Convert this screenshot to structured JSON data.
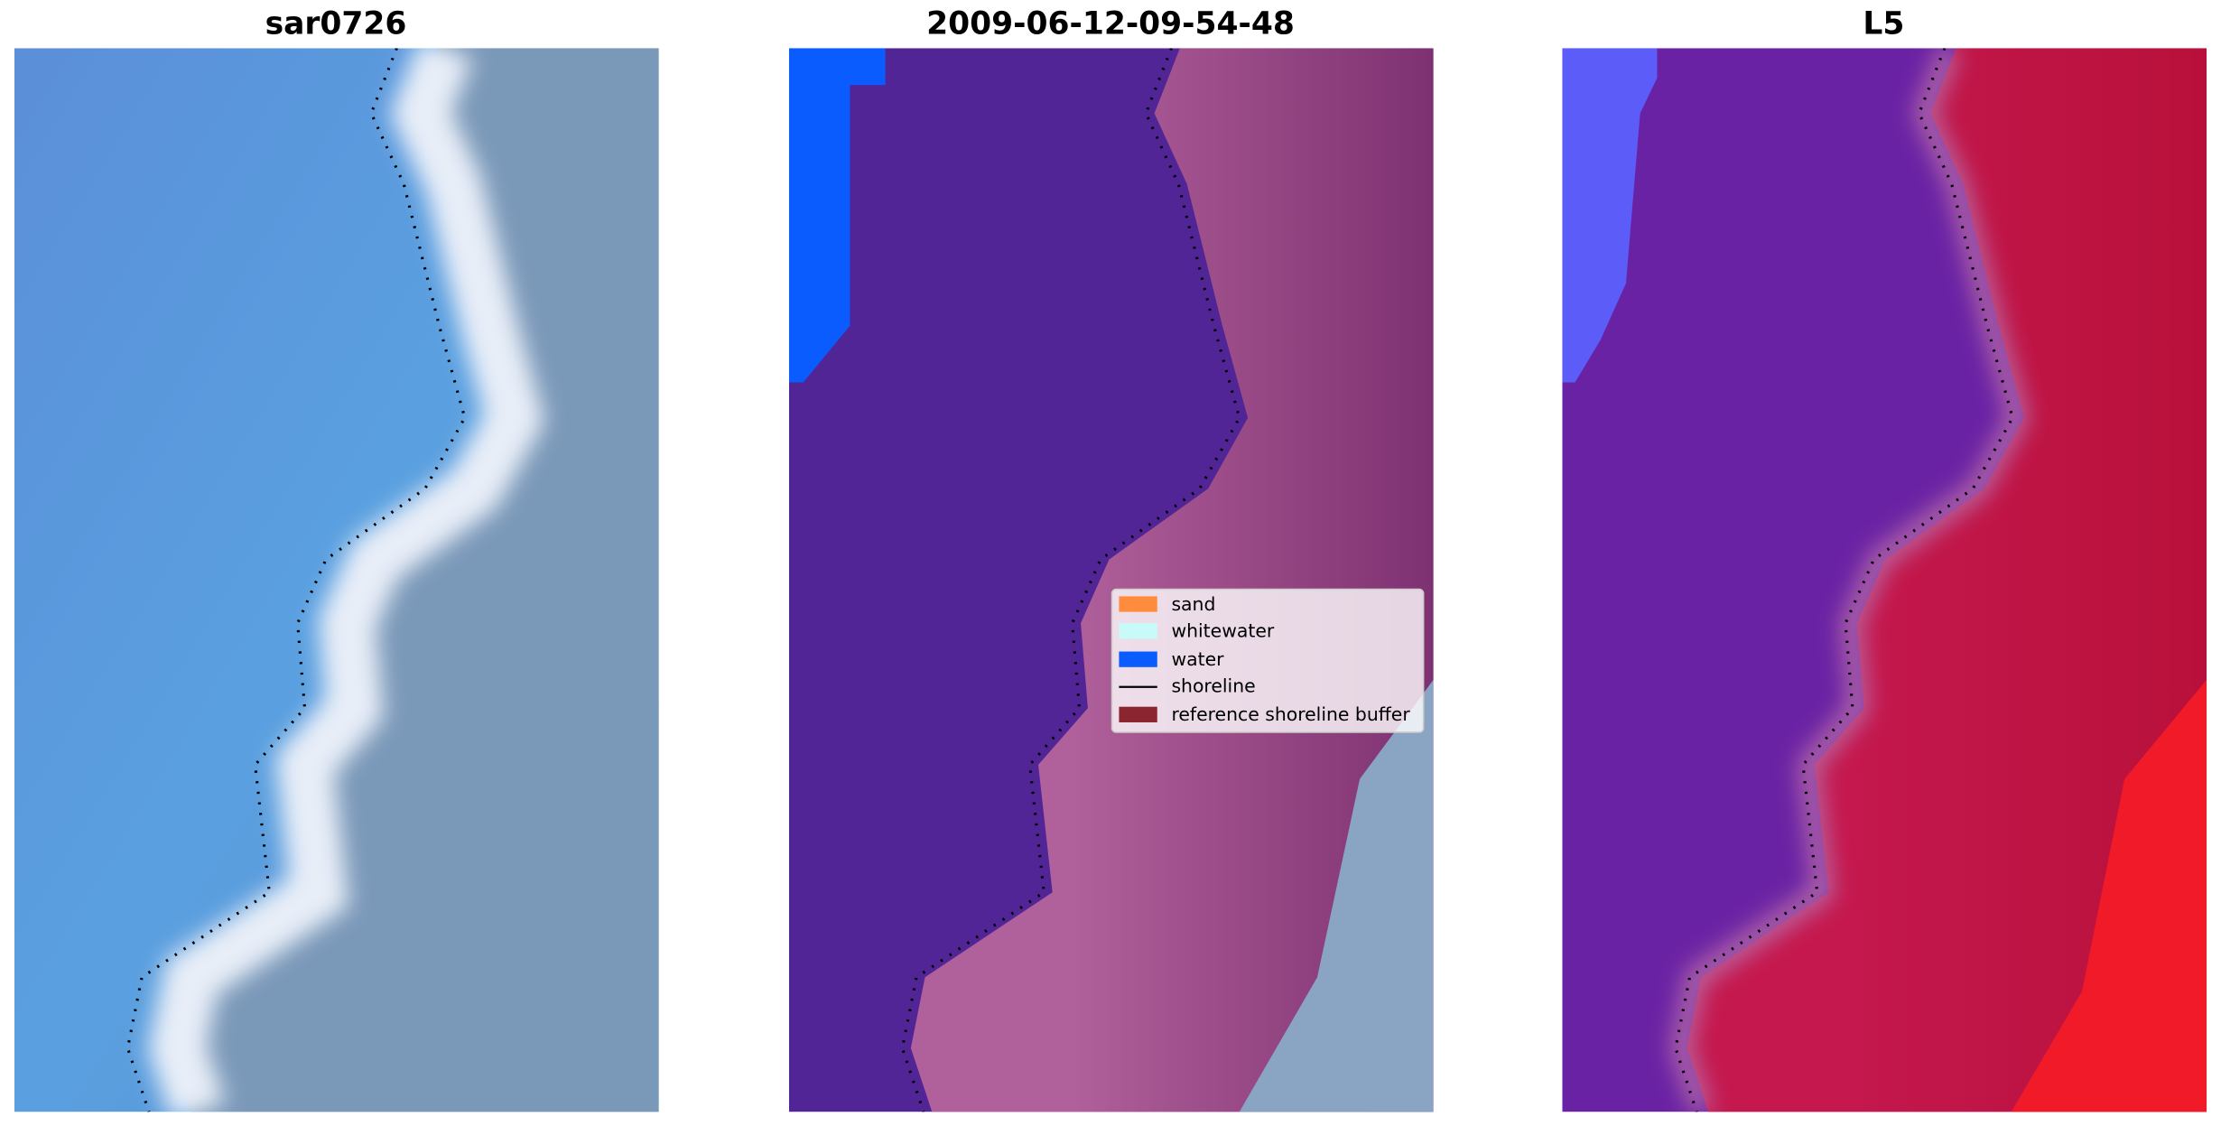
{
  "panels": [
    {
      "title": "sar0726"
    },
    {
      "title": "2009-06-12-09-54-48"
    },
    {
      "title": "L5"
    }
  ],
  "legend": {
    "items": [
      {
        "label": "sand"
      },
      {
        "label": "whitewater"
      },
      {
        "label": "water"
      },
      {
        "label": "shoreline"
      },
      {
        "label": "reference shoreline buffer"
      }
    ]
  }
}
